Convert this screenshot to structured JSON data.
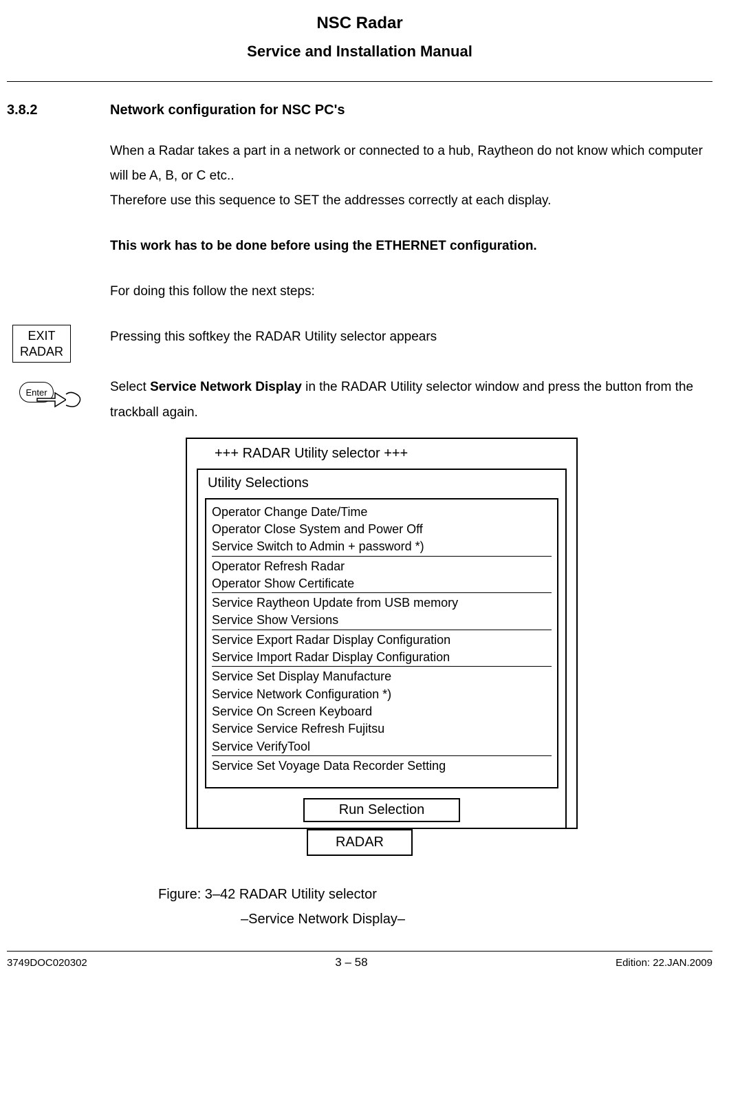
{
  "header": {
    "title": "NSC Radar",
    "subtitle": "Service and Installation Manual"
  },
  "section": {
    "number": "3.8.2",
    "title": "Network configuration for NSC PC's"
  },
  "body": {
    "p1a": "When a Radar takes a part in a network or connected to a hub, Raytheon do not know which computer will be A, B, or C etc..",
    "p1b": "Therefore use this sequence to SET the addresses correctly at each display.",
    "p2": "This work has to be done before using the ETHERNET configuration.",
    "p3": "For doing this follow the next steps:"
  },
  "softkey": {
    "line1": "EXIT",
    "line2": "RADAR",
    "caption": "Pressing this softkey the RADAR Utility selector appears"
  },
  "enter": {
    "label": "Enter",
    "text_pre": "Select ",
    "text_bold": "Service Network Display",
    "text_post": " in the RADAR Utility selector window and press the button from the trackball again."
  },
  "selector": {
    "title": "+++ RADAR Utility selector +++",
    "subtitle": "Utility Selections",
    "groups": [
      [
        "Operator Change Date/Time",
        "Operator Close  System and Power Off",
        "Service Switch to Admin + password *)"
      ],
      [
        "Operator Refresh Radar",
        "Operator Show Certificate"
      ],
      [
        "Service Raytheon Update from USB memory",
        "Service Show Versions"
      ],
      [
        "Service Export Radar Display Configuration",
        "Service Import Radar Display Configuration"
      ],
      [
        "Service Set Display Manufacture",
        "Service Network Configuration *)",
        "Service On Screen Keyboard",
        "Service Service Refresh Fujitsu",
        "Service VerifyTool"
      ],
      [
        "Service Set Voyage Data Recorder Setting"
      ]
    ],
    "run": "Run Selection",
    "back": "RADAR"
  },
  "figure": {
    "line1": "Figure: 3–42  RADAR Utility selector",
    "line2": "–Service Network Display–"
  },
  "footer": {
    "left": "3749DOC020302",
    "center": "3 – 58",
    "right": "Edition: 22.JAN.2009"
  }
}
